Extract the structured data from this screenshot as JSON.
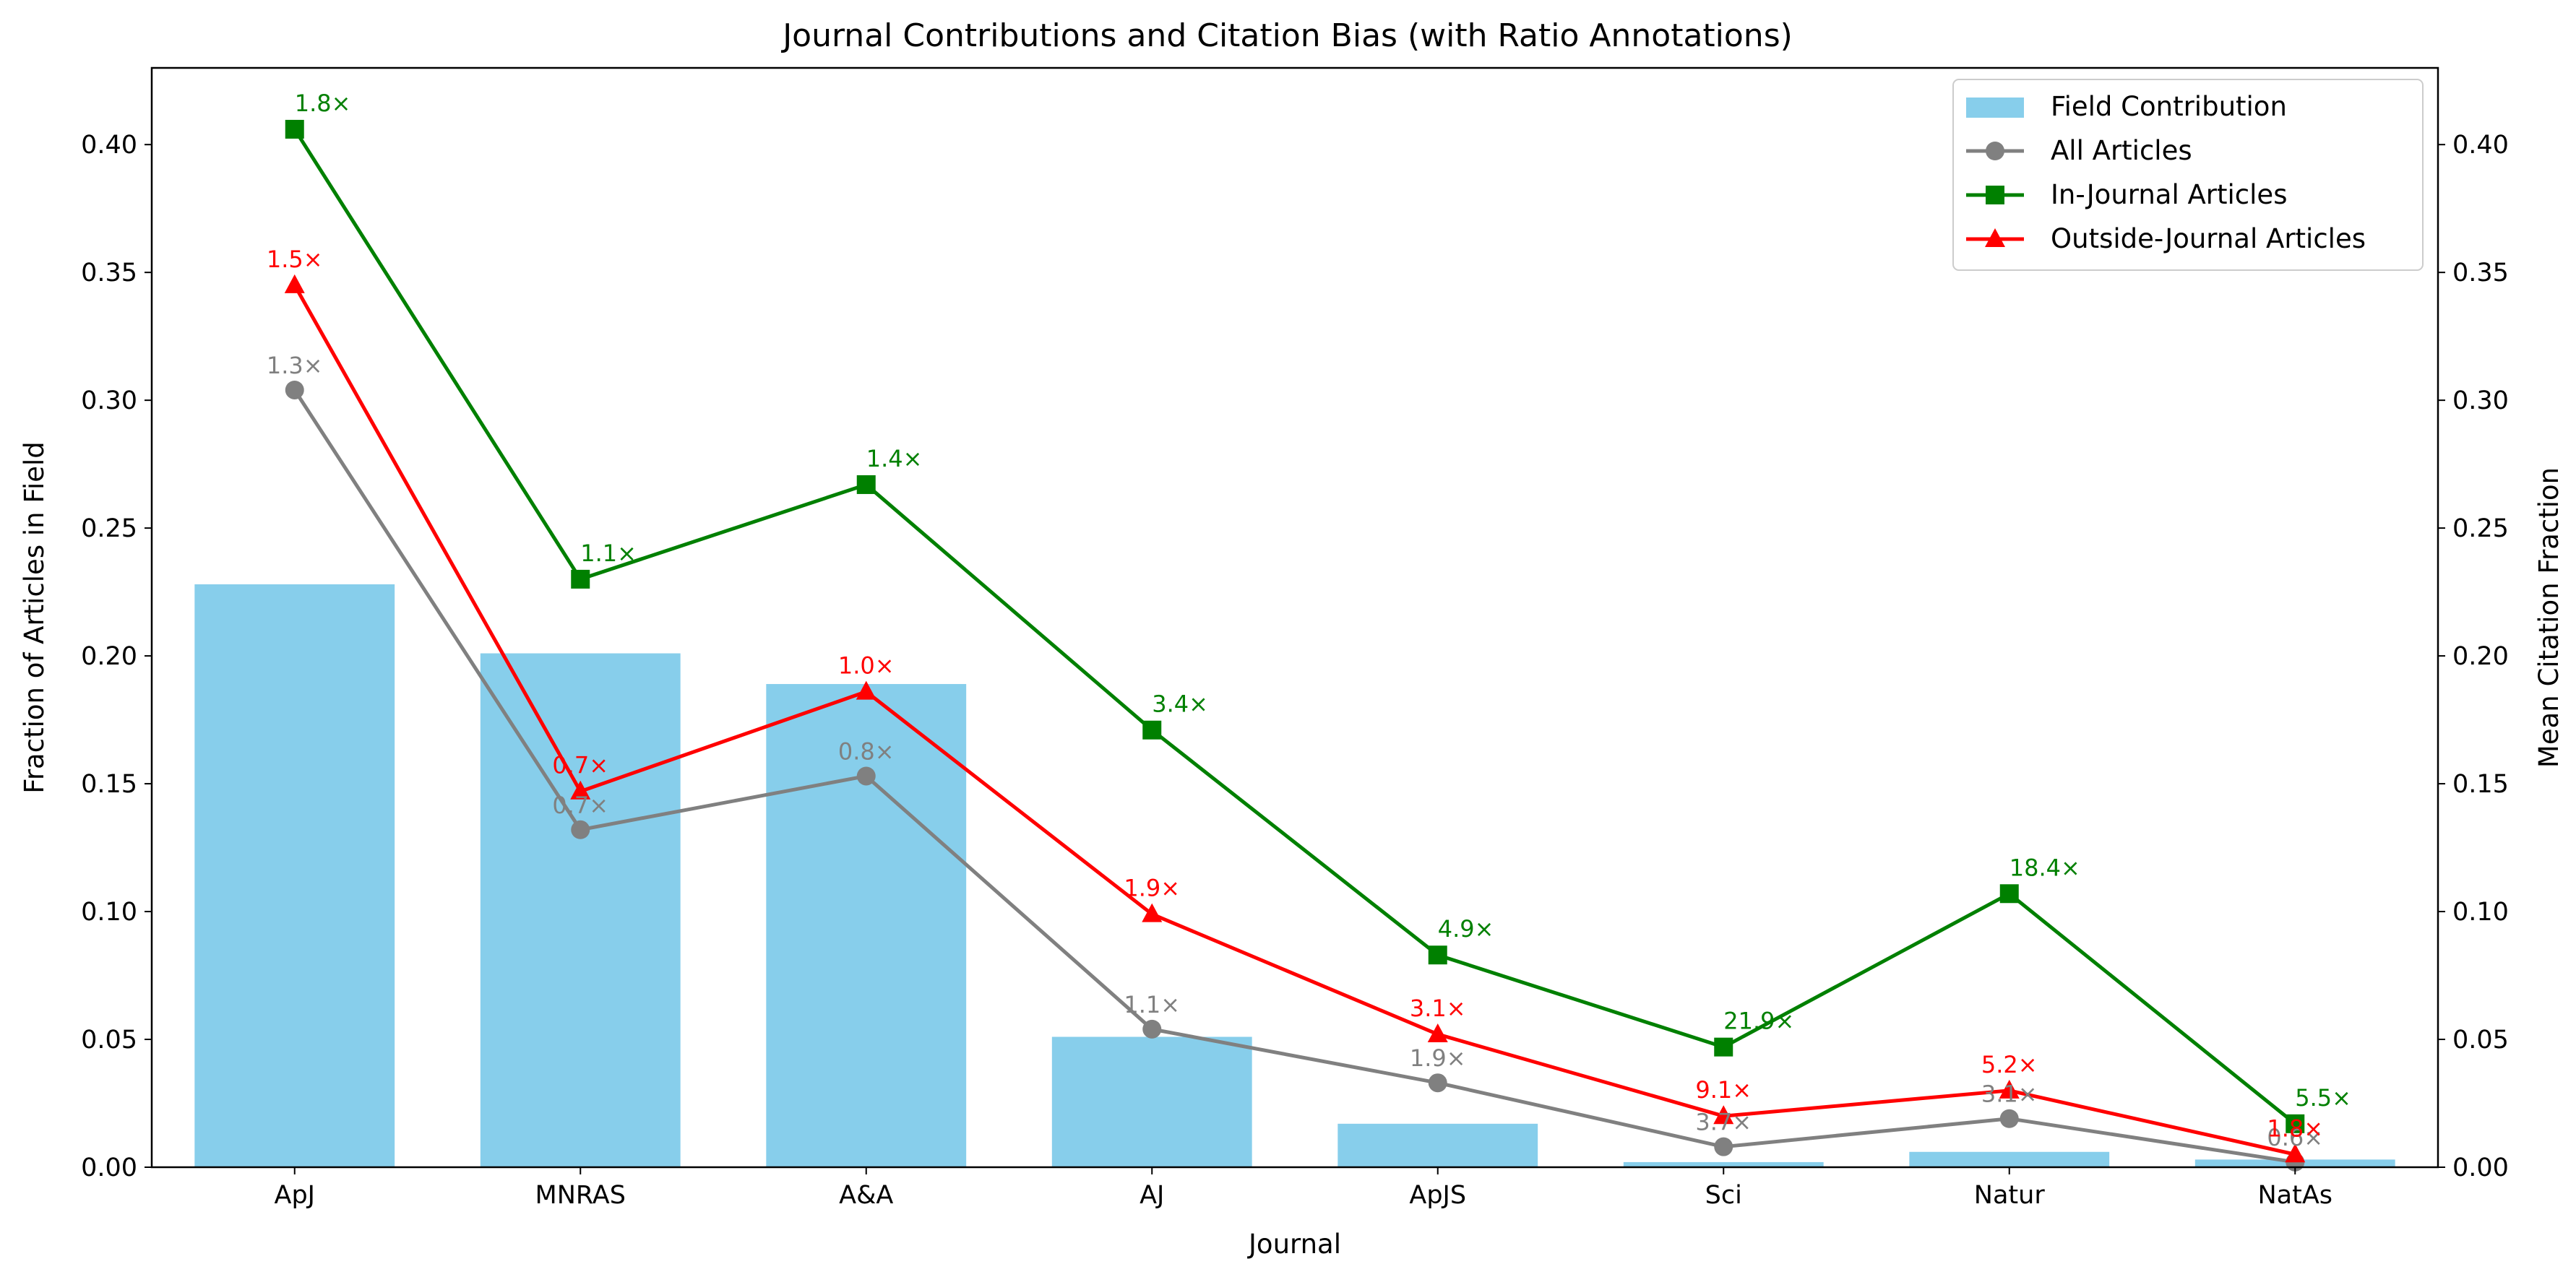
{
  "chart_data": {
    "type": "bar",
    "title": "Journal Contributions and Citation Bias (with Ratio Annotations)",
    "xlabel": "Journal",
    "ylabel": "Fraction of Articles in Field",
    "y2label": "Mean Citation Fraction",
    "categories": [
      "ApJ",
      "MNRAS",
      "A&A",
      "AJ",
      "ApJS",
      "Sci",
      "Natur",
      "NatAs"
    ],
    "ylim": [
      0,
      0.43
    ],
    "y2lim": [
      0,
      0.43
    ],
    "yticks": [
      "0.00",
      "0.05",
      "0.10",
      "0.15",
      "0.20",
      "0.25",
      "0.30",
      "0.35",
      "0.40"
    ],
    "y2ticks": [
      "0.00",
      "0.05",
      "0.10",
      "0.15",
      "0.20",
      "0.25",
      "0.30",
      "0.35",
      "0.40"
    ],
    "grid": false,
    "legend_position": "top-right",
    "series": [
      {
        "name": "Field Contribution",
        "kind": "bar",
        "axis": "left",
        "color": "#87CEEB",
        "values": [
          0.228,
          0.201,
          0.189,
          0.051,
          0.017,
          0.002,
          0.006,
          0.003
        ]
      },
      {
        "name": "All Articles",
        "kind": "line",
        "marker": "circle",
        "axis": "right",
        "color": "#808080",
        "values": [
          0.304,
          0.132,
          0.153,
          0.054,
          0.033,
          0.008,
          0.019,
          0.002
        ],
        "annotations": [
          "1.3×",
          "0.7×",
          "0.8×",
          "1.1×",
          "1.9×",
          "3.7×",
          "3.1×",
          "0.6×"
        ]
      },
      {
        "name": "In-Journal Articles",
        "kind": "line",
        "marker": "square",
        "axis": "right",
        "color": "#008000",
        "values": [
          0.406,
          0.23,
          0.267,
          0.171,
          0.083,
          0.047,
          0.107,
          0.017
        ],
        "annotations": [
          "1.8×",
          "1.1×",
          "1.4×",
          "3.4×",
          "4.9×",
          "21.9×",
          "18.4×",
          "5.5×"
        ]
      },
      {
        "name": "Outside-Journal Articles",
        "kind": "line",
        "marker": "triangle",
        "axis": "right",
        "color": "#FF0000",
        "values": [
          0.345,
          0.147,
          0.186,
          0.099,
          0.052,
          0.02,
          0.03,
          0.005
        ],
        "annotations": [
          "1.5×",
          "0.7×",
          "1.0×",
          "1.9×",
          "3.1×",
          "9.1×",
          "5.2×",
          "1.8×"
        ]
      }
    ]
  }
}
